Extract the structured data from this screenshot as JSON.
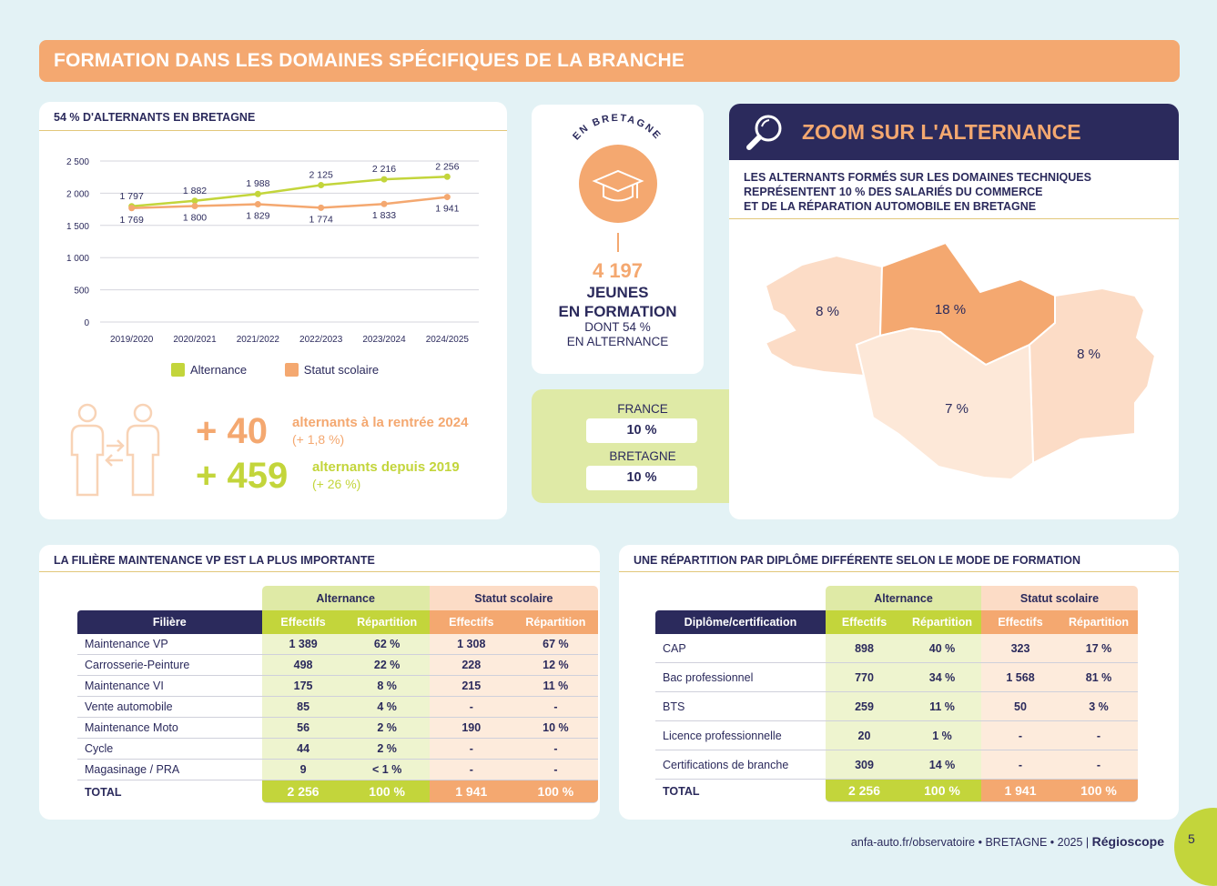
{
  "banner": {
    "title": "FORMATION DANS LES DOMAINES SPÉCIFIQUES DE LA BRANCHE"
  },
  "chart_card": {
    "title": "54 % D'ALTERNANTS EN BRETAGNE",
    "legend": {
      "alt": "Alternance",
      "sco": "Statut scolaire"
    }
  },
  "chart_data": {
    "type": "line",
    "x": [
      "2019/2020",
      "2020/2021",
      "2021/2022",
      "2022/2023",
      "2023/2024",
      "2024/2025"
    ],
    "series": [
      {
        "name": "Alternance",
        "color": "#c3d53b",
        "values": [
          1797,
          1882,
          1988,
          2125,
          2216,
          2256
        ],
        "labels": [
          "1 797",
          "1 882",
          "1 988",
          "2 125",
          "2 216",
          "2 256"
        ]
      },
      {
        "name": "Statut scolaire",
        "color": "#f4a870",
        "values": [
          1769,
          1800,
          1829,
          1774,
          1833,
          1941
        ],
        "labels": [
          "1 769",
          "1 800",
          "1 829",
          "1 774",
          "1 833",
          "1 941"
        ]
      }
    ],
    "yticks": [
      "0",
      "500",
      "1 000",
      "1 500",
      "2 000",
      "2 500"
    ],
    "ylim": [
      0,
      2500
    ],
    "grid": true,
    "legend": "bottom"
  },
  "stats": {
    "s1_num": "+ 40",
    "s1_txt": "alternants à la rentrée 2024",
    "s1_sub": "(+ 1,8 %)",
    "s2_num": "+ 459",
    "s2_txt": "alternants depuis 2019",
    "s2_sub": "(+ 26 %)"
  },
  "jeunes": {
    "arc": "EN BRETAGNE",
    "num": "4 197",
    "l1": "JEUNES",
    "l2": "EN FORMATION",
    "l3": "DONT 54 %",
    "l4": "EN ALTERNANCE"
  },
  "compare": {
    "france_lbl": "FRANCE",
    "france_val": "10 %",
    "bretagne_lbl": "BRETAGNE",
    "bretagne_val": "10 %"
  },
  "zoom": {
    "title": "ZOOM SUR L'ALTERNANCE",
    "sub1": "LES ALTERNANTS FORMÉS SUR LES DOMAINES TECHNIQUES",
    "sub2": "REPRÉSENTENT 10 % DES SALARIÉS DU COMMERCE",
    "sub3": "ET DE LA RÉPARATION AUTOMOBILE EN BRETAGNE",
    "map": {
      "west": "8 %",
      "north": "18 %",
      "east": "8 %",
      "south": "7 %"
    }
  },
  "filiere": {
    "title": "LA FILIÈRE MAINTENANCE VP EST LA PLUS IMPORTANTE",
    "grp_alt": "Alternance",
    "grp_sco": "Statut scolaire",
    "h_label": "Filière",
    "h_eff": "Effectifs",
    "h_rep": "Répartition",
    "rows": [
      {
        "label": "Maintenance VP",
        "a_eff": "1 389",
        "a_rep": "62 %",
        "s_eff": "1 308",
        "s_rep": "67 %"
      },
      {
        "label": "Carrosserie-Peinture",
        "a_eff": "498",
        "a_rep": "22 %",
        "s_eff": "228",
        "s_rep": "12 %"
      },
      {
        "label": "Maintenance VI",
        "a_eff": "175",
        "a_rep": "8 %",
        "s_eff": "215",
        "s_rep": "11 %"
      },
      {
        "label": "Vente automobile",
        "a_eff": "85",
        "a_rep": "4 %",
        "s_eff": "-",
        "s_rep": "-"
      },
      {
        "label": "Maintenance Moto",
        "a_eff": "56",
        "a_rep": "2 %",
        "s_eff": "190",
        "s_rep": "10 %"
      },
      {
        "label": "Cycle",
        "a_eff": "44",
        "a_rep": "2 %",
        "s_eff": "-",
        "s_rep": "-"
      },
      {
        "label": "Magasinage / PRA",
        "a_eff": "9",
        "a_rep": "< 1 %",
        "s_eff": "-",
        "s_rep": "-"
      }
    ],
    "total": {
      "label": "TOTAL",
      "a_eff": "2 256",
      "a_rep": "100 %",
      "s_eff": "1 941",
      "s_rep": "100 %"
    }
  },
  "diplome": {
    "title": "UNE RÉPARTITION PAR DIPLÔME DIFFÉRENTE SELON LE MODE DE FORMATION",
    "grp_alt": "Alternance",
    "grp_sco": "Statut scolaire",
    "h_label": "Diplôme/certification",
    "h_eff": "Effectifs",
    "h_rep": "Répartition",
    "rows": [
      {
        "label": "CAP",
        "a_eff": "898",
        "a_rep": "40 %",
        "s_eff": "323",
        "s_rep": "17 %"
      },
      {
        "label": "Bac professionnel",
        "a_eff": "770",
        "a_rep": "34 %",
        "s_eff": "1 568",
        "s_rep": "81 %"
      },
      {
        "label": "BTS",
        "a_eff": "259",
        "a_rep": "11 %",
        "s_eff": "50",
        "s_rep": "3 %"
      },
      {
        "label": "Licence professionnelle",
        "a_eff": "20",
        "a_rep": "1 %",
        "s_eff": "-",
        "s_rep": "-"
      },
      {
        "label": "Certifications de branche",
        "a_eff": "309",
        "a_rep": "14 %",
        "s_eff": "-",
        "s_rep": "-"
      }
    ],
    "total": {
      "label": "TOTAL",
      "a_eff": "2 256",
      "a_rep": "100 %",
      "s_eff": "1 941",
      "s_rep": "100 %"
    }
  },
  "footer": {
    "url": "anfa-auto.fr/observatoire",
    "region": "BRETAGNE",
    "year": "2025",
    "brand": "Régioscope",
    "page": "5"
  }
}
